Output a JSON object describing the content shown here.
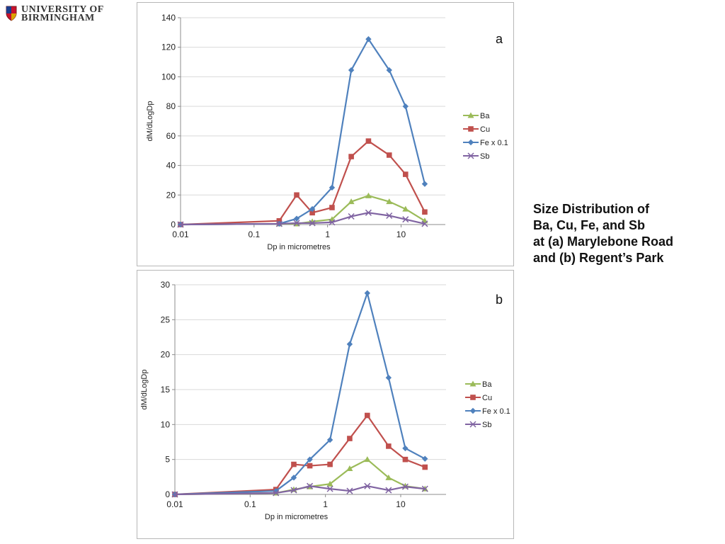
{
  "logo": {
    "line1": "UNIVERSITY OF",
    "line2": "BIRMINGHAM"
  },
  "caption": {
    "lines": [
      "Size Distribution of",
      "Ba, Cu, Fe, and Sb",
      "at (a) Marylebone Road",
      "and (b) Regent’s Park"
    ]
  },
  "colors": {
    "Ba": "#9bbb59",
    "Cu": "#c0504d",
    "Fe": "#4f81bd",
    "Sb": "#8064a2"
  },
  "chart_data": [
    {
      "type": "line",
      "panel": "a",
      "title": "",
      "xlabel": "Dp in micrometres",
      "ylabel": "dM/dLogDp",
      "xscale": "log",
      "xlim": [
        0.01,
        40
      ],
      "ylim": [
        0,
        140
      ],
      "yticks": [
        0,
        20,
        40,
        60,
        80,
        100,
        120,
        140
      ],
      "xticks": [
        0.01,
        0.1,
        1,
        10
      ],
      "xtick_labels": [
        "0.01",
        "0.1",
        "1",
        "10"
      ],
      "grid": "horizontal",
      "legend": "right",
      "series": [
        {
          "name": "Ba",
          "marker": "triangle",
          "x": [
            0.01,
            0.22,
            0.38,
            0.62,
            1.15,
            2.1,
            3.6,
            6.9,
            11.5,
            21
          ],
          "y": [
            0,
            0.5,
            0.5,
            2,
            3.5,
            15.5,
            19.5,
            15.5,
            10.5,
            2.5
          ]
        },
        {
          "name": "Cu",
          "marker": "square",
          "x": [
            0.01,
            0.22,
            0.38,
            0.62,
            1.15,
            2.1,
            3.6,
            6.9,
            11.5,
            21
          ],
          "y": [
            0,
            2.5,
            20,
            8,
            11.5,
            46,
            56.5,
            47,
            34,
            8.5
          ]
        },
        {
          "name": "Fe x 0.1",
          "marker": "diamond",
          "x": [
            0.01,
            0.22,
            0.38,
            0.62,
            1.15,
            2.1,
            3.6,
            6.9,
            11.5,
            21
          ],
          "y": [
            0,
            0.5,
            4,
            10.5,
            25,
            104.5,
            125.5,
            104.5,
            80,
            27.5
          ]
        },
        {
          "name": "Sb",
          "marker": "x",
          "x": [
            0.01,
            0.22,
            0.38,
            0.62,
            1.15,
            2.1,
            3.6,
            6.9,
            11.5,
            21
          ],
          "y": [
            0,
            0.5,
            1,
            1,
            1.5,
            5.5,
            8,
            6,
            3.5,
            0.5
          ]
        }
      ]
    },
    {
      "type": "line",
      "panel": "b",
      "title": "",
      "xlabel": "Dp in micrometres",
      "ylabel": "dM/dLogDp",
      "xscale": "log",
      "xlim": [
        0.01,
        40
      ],
      "ylim": [
        0,
        30
      ],
      "yticks": [
        0,
        5,
        10,
        15,
        20,
        25,
        30
      ],
      "xticks": [
        0.01,
        0.1,
        1,
        10
      ],
      "xtick_labels": [
        "0.01",
        "0.1",
        "1",
        "10"
      ],
      "grid": "horizontal",
      "legend": "right",
      "series": [
        {
          "name": "Ba",
          "marker": "triangle",
          "x": [
            0.01,
            0.22,
            0.38,
            0.62,
            1.15,
            2.1,
            3.6,
            6.9,
            11.5,
            21
          ],
          "y": [
            0,
            0.2,
            0.7,
            1.1,
            1.5,
            3.7,
            5.0,
            2.4,
            1.2,
            0.8
          ]
        },
        {
          "name": "Cu",
          "marker": "square",
          "x": [
            0.01,
            0.22,
            0.38,
            0.62,
            1.15,
            2.1,
            3.6,
            6.9,
            11.5,
            21
          ],
          "y": [
            0,
            0.7,
            4.3,
            4.1,
            4.3,
            8.0,
            11.3,
            6.9,
            5.0,
            3.9
          ]
        },
        {
          "name": "Fe x 0.1",
          "marker": "diamond",
          "x": [
            0.01,
            0.22,
            0.38,
            0.62,
            1.15,
            2.1,
            3.6,
            6.9,
            11.5,
            21
          ],
          "y": [
            0,
            0.5,
            2.4,
            5.0,
            7.8,
            21.5,
            28.8,
            16.7,
            6.6,
            5.1
          ]
        },
        {
          "name": "Sb",
          "marker": "x",
          "x": [
            0.01,
            0.22,
            0.38,
            0.62,
            1.15,
            2.1,
            3.6,
            6.9,
            11.5,
            21
          ],
          "y": [
            0,
            0.2,
            0.6,
            1.2,
            0.8,
            0.5,
            1.2,
            0.6,
            1.1,
            0.8
          ]
        }
      ]
    }
  ]
}
